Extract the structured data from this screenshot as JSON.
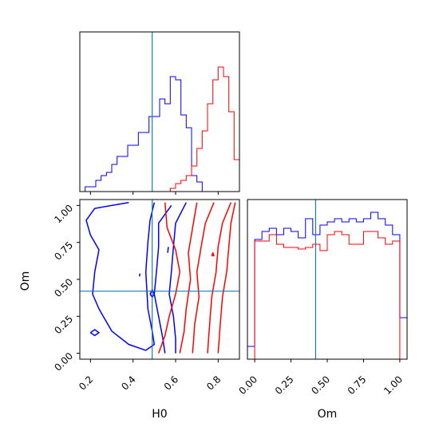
{
  "figure": {
    "type": "corner_plot",
    "parameters": [
      "H0",
      "Om"
    ],
    "colors": {
      "blue": "#0000ff",
      "red": "#ff0000",
      "truth": "#1f77b4",
      "axes": "#000000"
    }
  },
  "chart_data": [
    {
      "panel": "H0 marginal histogram",
      "type": "histogram",
      "xlim": [
        0.15,
        0.9
      ],
      "ylim": [
        0,
        1.0
      ],
      "y_ticks_shown": false,
      "truth": 0.49,
      "bin_edges": [
        0.15,
        0.175,
        0.2,
        0.225,
        0.25,
        0.275,
        0.3,
        0.325,
        0.35,
        0.375,
        0.4,
        0.425,
        0.45,
        0.475,
        0.5,
        0.525,
        0.55,
        0.575,
        0.6,
        0.625,
        0.65,
        0.675,
        0.7,
        0.725,
        0.75,
        0.775,
        0.8,
        0.825,
        0.85,
        0.875,
        0.9
      ],
      "series": [
        {
          "color": "#0000ff",
          "values": [
            0.0,
            0.03,
            0.03,
            0.07,
            0.1,
            0.12,
            0.17,
            0.22,
            0.22,
            0.29,
            0.29,
            0.37,
            0.37,
            0.47,
            0.47,
            0.58,
            0.55,
            0.72,
            0.7,
            0.48,
            0.4,
            0.1,
            0.06,
            0.0,
            0,
            0,
            0,
            0,
            0,
            0
          ]
        },
        {
          "color": "#ff0000",
          "values": [
            0,
            0,
            0,
            0,
            0,
            0,
            0,
            0,
            0,
            0,
            0,
            0,
            0,
            0,
            0,
            0,
            0,
            0.02,
            0.05,
            0.07,
            0.1,
            0.16,
            0.27,
            0.38,
            0.55,
            0.7,
            0.78,
            0.72,
            0.5,
            0.2
          ]
        }
      ]
    },
    {
      "panel": "H0 vs Om joint contours",
      "type": "contour",
      "xlabel": "H0",
      "ylabel": "Om",
      "xlim": [
        0.15,
        0.9
      ],
      "ylim": [
        -0.04,
        1.04
      ],
      "x_ticks": [
        0.2,
        0.4,
        0.6,
        0.8
      ],
      "x_tick_labels": [
        "0.2",
        "0.4",
        "0.6",
        "0.8"
      ],
      "y_ticks": [
        0.0,
        0.25,
        0.5,
        0.75,
        1.0
      ],
      "y_tick_labels": [
        "0.00",
        "0.25",
        "0.50",
        "0.75",
        "1.00"
      ],
      "truth": {
        "x": 0.49,
        "y": 0.42
      },
      "series": [
        {
          "color": "#0000ff",
          "contours": [
            [
              [
                0.38,
                1.02
              ],
              [
                0.22,
                0.98
              ],
              [
                0.18,
                0.9
              ],
              [
                0.2,
                0.8
              ],
              [
                0.24,
                0.7
              ],
              [
                0.22,
                0.55
              ],
              [
                0.21,
                0.4
              ],
              [
                0.24,
                0.3
              ],
              [
                0.3,
                0.15
              ],
              [
                0.38,
                0.06
              ],
              [
                0.46,
                0.02
              ],
              [
                0.5,
                0.06
              ],
              [
                0.49,
                0.15
              ],
              [
                0.47,
                0.3
              ],
              [
                0.46,
                0.55
              ],
              [
                0.47,
                0.75
              ],
              [
                0.48,
                0.9
              ],
              [
                0.5,
                1.02
              ]
            ],
            [
              [
                0.58,
                1.0
              ],
              [
                0.52,
                0.88
              ],
              [
                0.52,
                0.72
              ],
              [
                0.51,
                0.55
              ],
              [
                0.5,
                0.4
              ],
              [
                0.52,
                0.25
              ],
              [
                0.54,
                0.1
              ],
              [
                0.55,
                0.0
              ]
            ],
            [
              [
                0.65,
                1.02
              ],
              [
                0.6,
                0.88
              ],
              [
                0.59,
                0.72
              ],
              [
                0.58,
                0.55
              ],
              [
                0.57,
                0.4
              ],
              [
                0.59,
                0.25
              ],
              [
                0.6,
                0.1
              ],
              [
                0.6,
                0.0
              ]
            ],
            [
              [
                0.2,
                0.14
              ],
              [
                0.22,
                0.16
              ],
              [
                0.24,
                0.14
              ],
              [
                0.22,
                0.12
              ],
              [
                0.2,
                0.14
              ]
            ],
            [
              [
                0.48,
                0.4
              ],
              [
                0.49,
                0.43
              ],
              [
                0.5,
                0.4
              ],
              [
                0.49,
                0.38
              ],
              [
                0.48,
                0.4
              ]
            ],
            [
              [
                0.563,
                0.68
              ],
              [
                0.566,
                0.72
              ]
            ],
            [
              [
                0.43,
                0.52
              ],
              [
                0.433,
                0.54
              ]
            ]
          ]
        },
        {
          "color": "#ff0000",
          "contours": [
            [
              [
                0.55,
                1.02
              ],
              [
                0.56,
                0.85
              ],
              [
                0.6,
                0.7
              ],
              [
                0.62,
                0.55
              ],
              [
                0.6,
                0.4
              ],
              [
                0.57,
                0.25
              ],
              [
                0.55,
                0.12
              ],
              [
                0.52,
                0.0
              ]
            ],
            [
              [
                0.7,
                1.02
              ],
              [
                0.68,
                0.85
              ],
              [
                0.66,
                0.68
              ],
              [
                0.67,
                0.5
              ],
              [
                0.65,
                0.3
              ],
              [
                0.64,
                0.15
              ],
              [
                0.62,
                0.0
              ]
            ],
            [
              [
                0.78,
                1.02
              ],
              [
                0.74,
                0.88
              ],
              [
                0.72,
                0.72
              ],
              [
                0.7,
                0.55
              ],
              [
                0.71,
                0.38
              ],
              [
                0.69,
                0.2
              ],
              [
                0.68,
                0.0
              ]
            ],
            [
              [
                0.86,
                1.02
              ],
              [
                0.82,
                0.88
              ],
              [
                0.8,
                0.72
              ],
              [
                0.79,
                0.55
              ],
              [
                0.77,
                0.38
              ],
              [
                0.76,
                0.2
              ],
              [
                0.75,
                0.0
              ]
            ],
            [
              [
                0.88,
                1.02
              ],
              [
                0.86,
                0.88
              ],
              [
                0.85,
                0.72
              ],
              [
                0.84,
                0.55
              ],
              [
                0.82,
                0.38
              ],
              [
                0.81,
                0.2
              ],
              [
                0.8,
                0.0
              ]
            ],
            [
              [
                0.77,
                0.66
              ],
              [
                0.775,
                0.68
              ],
              [
                0.78,
                0.66
              ],
              [
                0.77,
                0.66
              ]
            ]
          ]
        }
      ]
    },
    {
      "panel": "Om marginal histogram",
      "type": "histogram",
      "xlabel": "Om",
      "xlim": [
        -0.05,
        1.05
      ],
      "ylim": [
        0,
        1.0
      ],
      "y_ticks_shown": false,
      "x_ticks": [
        0.0,
        0.25,
        0.5,
        0.75,
        1.0
      ],
      "x_tick_labels": [
        "0.00",
        "0.25",
        "0.50",
        "0.75",
        "1.00"
      ],
      "truth": 0.42,
      "bin_edges": [
        -0.05,
        0.0,
        0.05,
        0.1,
        0.15,
        0.2,
        0.25,
        0.3,
        0.35,
        0.4,
        0.45,
        0.5,
        0.55,
        0.6,
        0.65,
        0.7,
        0.75,
        0.8,
        0.85,
        0.9,
        0.95,
        1.0,
        1.05
      ],
      "series": [
        {
          "color": "#0000ff",
          "values": [
            0.08,
            0.75,
            0.8,
            0.82,
            0.78,
            0.82,
            0.8,
            0.76,
            0.88,
            0.78,
            0.84,
            0.86,
            0.88,
            0.86,
            0.88,
            0.86,
            0.88,
            0.92,
            0.88,
            0.84,
            0.78,
            0.26
          ]
        },
        {
          "color": "#ff0000",
          "values": [
            0.0,
            0.74,
            0.74,
            0.78,
            0.72,
            0.7,
            0.7,
            0.69,
            0.7,
            0.72,
            0.68,
            0.78,
            0.8,
            0.78,
            0.72,
            0.72,
            0.8,
            0.8,
            0.76,
            0.72,
            0.74,
            0.0
          ]
        }
      ]
    }
  ]
}
